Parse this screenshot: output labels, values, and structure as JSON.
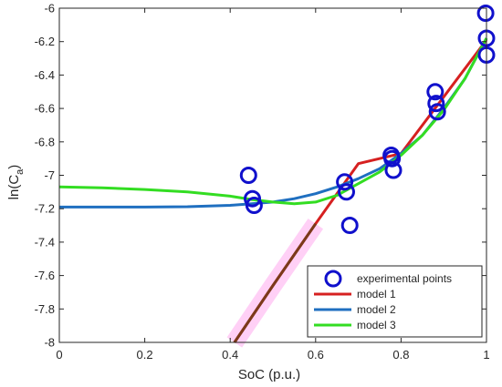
{
  "chart_data": {
    "type": "scatter",
    "title": "",
    "xlabel": "SoC (p.u.)",
    "ylabel_main": "ln(C",
    "ylabel_sub": "a",
    "ylabel_close": ")",
    "xlim": [
      0,
      1
    ],
    "ylim": [
      -8,
      -6
    ],
    "xticks": [
      0,
      0.2,
      0.4,
      0.6,
      0.8,
      1
    ],
    "xtick_labels": [
      "0",
      "0.2",
      "0.4",
      "0.6",
      "0.8",
      "1"
    ],
    "yticks": [
      -6,
      -6.2,
      -6.4,
      -6.6,
      -6.8,
      -7,
      -7.2,
      -7.4,
      -7.6,
      -7.8,
      -8
    ],
    "ytick_labels": [
      "-6",
      "-6.2",
      "-6.4",
      "-6.6",
      "-6.8",
      "-7",
      "-7.2",
      "-7.4",
      "-7.6",
      "-7.8",
      "-8"
    ],
    "grid": false,
    "legend_position": "bottom-right",
    "points": {
      "name": "experimental points",
      "color": "#1010cc",
      "x": [
        0.443,
        0.452,
        0.456,
        0.668,
        0.672,
        0.68,
        0.777,
        0.779,
        0.782,
        0.88,
        0.882,
        0.885,
        0.998,
        1.0,
        1.0
      ],
      "y": [
        -7.0,
        -7.14,
        -7.18,
        -7.04,
        -7.1,
        -7.3,
        -6.88,
        -6.9,
        -6.97,
        -6.5,
        -6.57,
        -6.62,
        -6.03,
        -6.18,
        -6.28
      ]
    },
    "series": [
      {
        "name": "model 1",
        "color": "#d62020",
        "x": [
          0.41,
          0.5,
          0.6,
          0.7,
          0.8,
          0.9,
          1.0
        ],
        "y": [
          -8.0,
          -7.66,
          -7.29,
          -6.93,
          -6.87,
          -6.53,
          -6.19
        ]
      },
      {
        "name": "model 2",
        "color": "#1f6fc0",
        "x": [
          0,
          0.1,
          0.2,
          0.3,
          0.4,
          0.45,
          0.5,
          0.55,
          0.6,
          0.65,
          0.7,
          0.75,
          0.8,
          0.85,
          0.9,
          0.95,
          1.0
        ],
        "y": [
          -7.19,
          -7.19,
          -7.19,
          -7.188,
          -7.18,
          -7.17,
          -7.16,
          -7.14,
          -7.11,
          -7.07,
          -7.02,
          -6.96,
          -6.87,
          -6.76,
          -6.6,
          -6.42,
          -6.18
        ]
      },
      {
        "name": "model 3",
        "color": "#33dd22",
        "x": [
          0,
          0.1,
          0.2,
          0.3,
          0.4,
          0.45,
          0.5,
          0.55,
          0.6,
          0.65,
          0.7,
          0.75,
          0.8,
          0.85,
          0.9,
          0.95,
          1.0
        ],
        "y": [
          -7.07,
          -7.075,
          -7.085,
          -7.1,
          -7.125,
          -7.145,
          -7.16,
          -7.17,
          -7.16,
          -7.12,
          -7.05,
          -6.98,
          -6.88,
          -6.76,
          -6.61,
          -6.42,
          -6.18
        ]
      }
    ],
    "lower_segment_color": "#7a3a1a",
    "highlight_color": "#ffc4f4"
  }
}
